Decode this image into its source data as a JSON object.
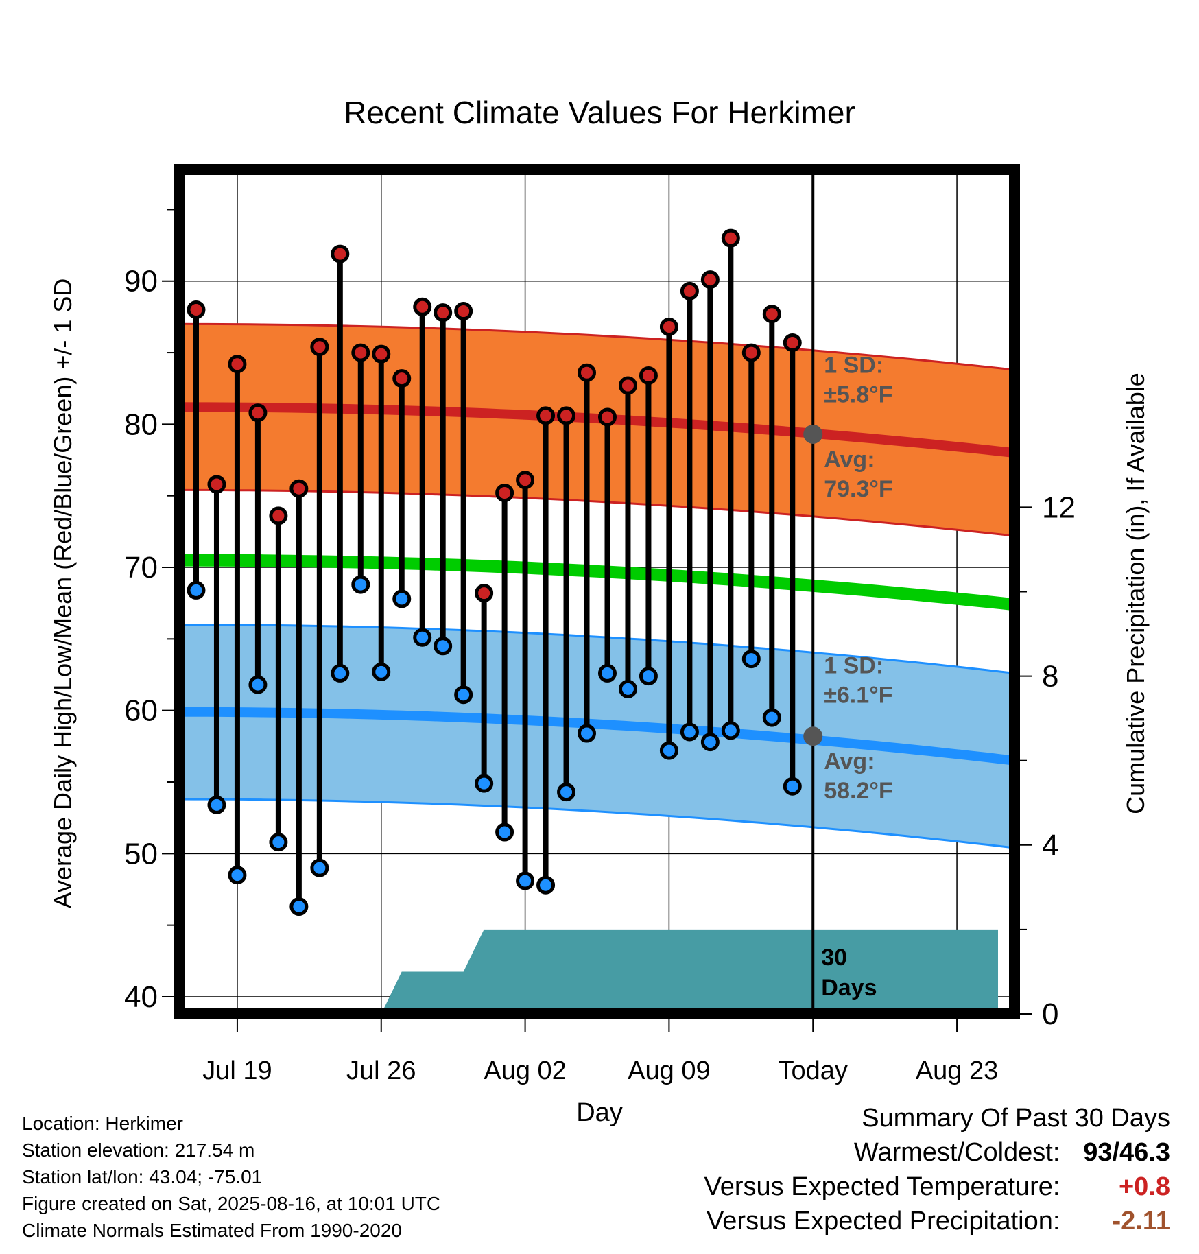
{
  "title": "Recent Climate Values For Herkimer",
  "chart_data": {
    "type": "line",
    "title": "Recent Climate Values For Herkimer",
    "xlabel": "Day",
    "ylabel_left": "Average Daily High/Low/Mean (Red/Blue/Green) +/- 1 SD",
    "ylabel_right": "Cumulative Precipitation (in), If Available",
    "x_ticks": [
      "Jul 19",
      "Jul 26",
      "Aug 02",
      "Aug 09",
      "Today",
      "Aug 23"
    ],
    "ylim_left": [
      38.8,
      97.8
    ],
    "y_ticks_left": [
      40,
      50,
      60,
      70,
      80,
      90
    ],
    "y_ticks_right": [
      0,
      4,
      8,
      12
    ],
    "ylim_right": [
      0,
      20
    ],
    "days": [
      "Jul 17",
      "Jul 18",
      "Jul 19",
      "Jul 20",
      "Jul 21",
      "Jul 22",
      "Jul 23",
      "Jul 24",
      "Jul 25",
      "Jul 26",
      "Jul 27",
      "Jul 28",
      "Jul 29",
      "Jul 30",
      "Jul 31",
      "Aug 01",
      "Aug 02",
      "Aug 03",
      "Aug 04",
      "Aug 05",
      "Aug 06",
      "Aug 07",
      "Aug 08",
      "Aug 09",
      "Aug 10",
      "Aug 11",
      "Aug 12",
      "Aug 13",
      "Aug 14",
      "Aug 15"
    ],
    "series": [
      {
        "name": "High",
        "color": "#cc2222",
        "values": [
          88.0,
          75.8,
          84.2,
          80.8,
          73.6,
          75.5,
          85.4,
          91.9,
          85.0,
          84.9,
          83.2,
          88.2,
          87.8,
          87.9,
          68.2,
          75.2,
          76.1,
          80.6,
          80.6,
          83.6,
          80.5,
          82.7,
          83.4,
          86.8,
          89.3,
          90.1,
          93.0,
          85.0,
          87.7,
          85.7
        ]
      },
      {
        "name": "Low",
        "color": "#1e90ff",
        "values": [
          68.4,
          53.4,
          48.5,
          61.8,
          50.8,
          46.3,
          49.0,
          62.6,
          68.8,
          62.7,
          67.8,
          65.1,
          64.5,
          61.1,
          54.9,
          51.5,
          48.1,
          47.8,
          54.3,
          58.4,
          62.6,
          61.5,
          62.4,
          57.2,
          58.5,
          57.8,
          58.6,
          63.6,
          59.5,
          54.7
        ]
      }
    ],
    "normals": {
      "high_avg": [
        81.2,
        78.0
      ],
      "high_sd": 5.8,
      "low_avg": [
        59.9,
        56.5
      ],
      "low_sd": 6.1,
      "mean_avg": [
        70.5,
        67.4
      ],
      "today_high_avg": 79.3,
      "today_low_avg": 58.2
    },
    "precip_cumulative": [
      {
        "day": 10,
        "value": 0.0
      },
      {
        "day": 11,
        "value": 1.0
      },
      {
        "day": 14,
        "value": 1.0
      },
      {
        "day": 15,
        "value": 2.0
      },
      {
        "day": 40,
        "value": 2.0
      }
    ],
    "annotations": {
      "high_sd": "1 SD:\n±5.8°F",
      "high_avg": "Avg:\n79.3°F",
      "low_sd": "1 SD:\n±6.1°F",
      "low_avg": "Avg:\n58.2°F",
      "days": "30\nDays"
    },
    "colors": {
      "high_band": "#f47b2f",
      "high_line": "#cc2222",
      "low_band": "#84c1e8",
      "low_line": "#1e90ff",
      "mean_line": "#00cc00",
      "precip": "#479ca4",
      "annotation": "#555555"
    }
  },
  "info": {
    "location": "Location: Herkimer",
    "elevation": "Station elevation: 217.54 m",
    "latlon": "Station lat/lon: 43.04; -75.01",
    "created": "Figure created on Sat, 2025-08-16, at 10:01 UTC",
    "normals": "Climate Normals Estimated From 1990-2020"
  },
  "summary": {
    "heading": "Summary Of Past 30 Days",
    "warmest_label": "Warmest/Coldest:",
    "warmest_value": "93/46.3",
    "temp_label": "Versus Expected Temperature:",
    "temp_value": "+0.8",
    "temp_color": "#cc2222",
    "precip_label": "Versus Expected Precipitation:",
    "precip_value": "-2.11",
    "precip_color": "#a0522d"
  }
}
